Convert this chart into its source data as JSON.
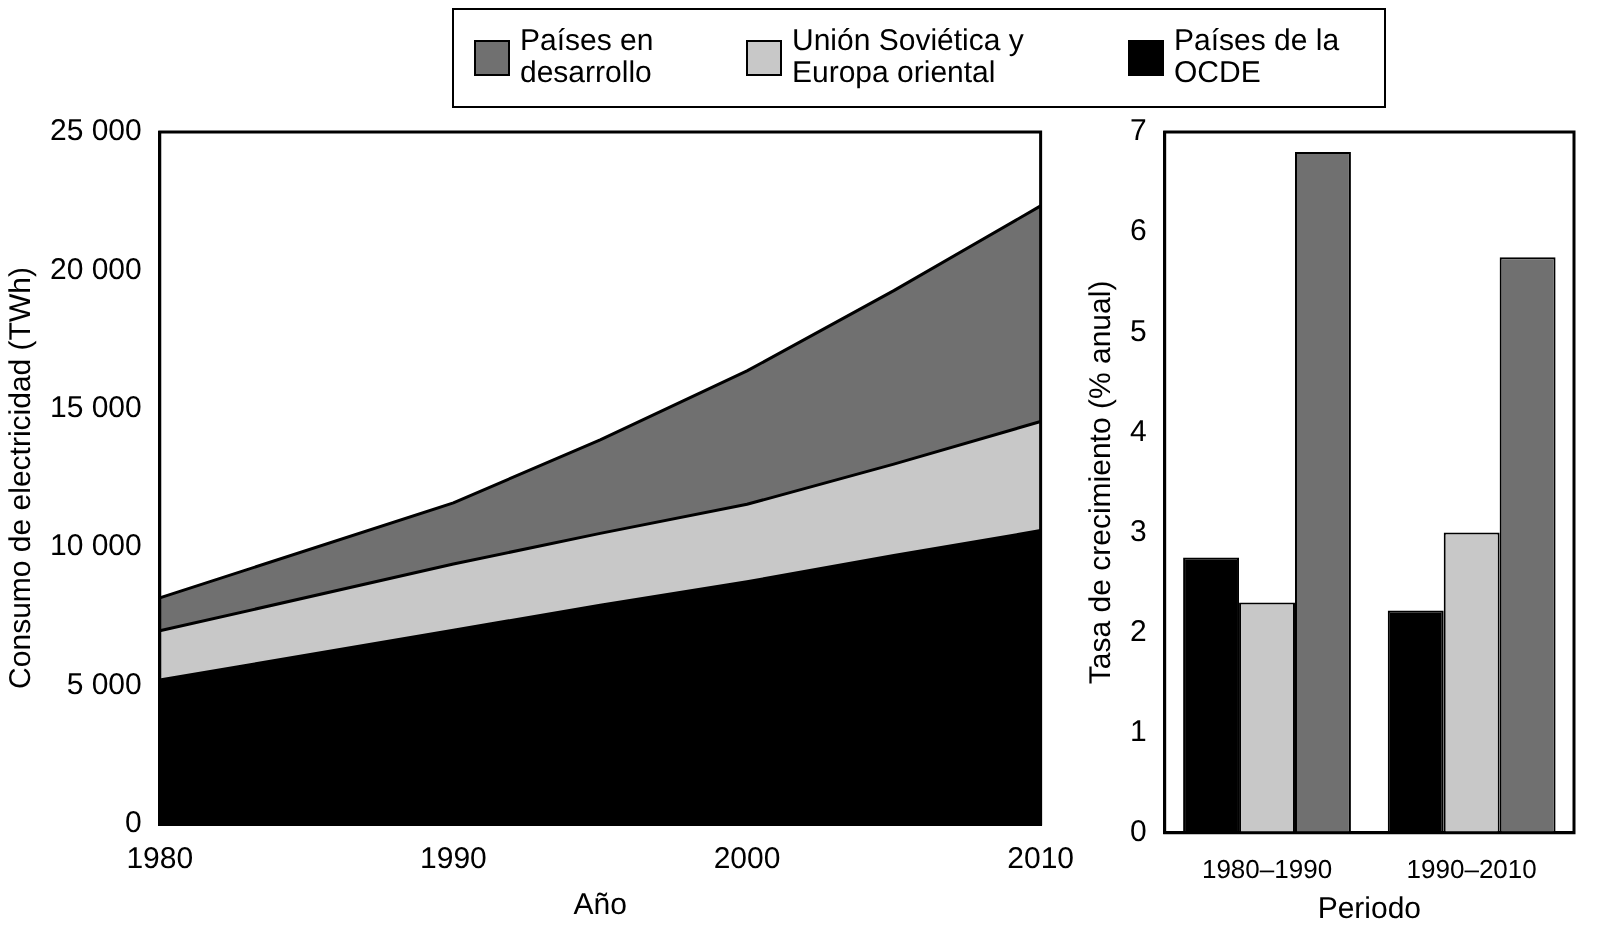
{
  "chart_data": [
    {
      "type": "area",
      "xlabel": "Año",
      "ylabel": "Consumo de electricidad (TWh)",
      "stacked": true,
      "legend": "top",
      "grid": false,
      "marker": "none",
      "x": [
        1980,
        1990,
        1995,
        2000,
        2005,
        2010
      ],
      "xlim": [
        1980,
        2010
      ],
      "xticks": [
        1980,
        1990,
        2000,
        2010
      ],
      "ylim": [
        0,
        25000
      ],
      "yticks": [
        0,
        {
          "value": 5000,
          "label": "5 000"
        },
        {
          "value": 10000,
          "label": "10 000"
        },
        {
          "value": 15000,
          "label": "15 000"
        },
        {
          "value": 20000,
          "label": "20 000"
        },
        {
          "value": 25000,
          "label": "25 000"
        }
      ],
      "series": [
        {
          "name": "Países de la OCDE",
          "color": "#000000",
          "values": [
            5200,
            7000,
            7900,
            8750,
            9700,
            10600
          ]
        },
        {
          "name": "Unión Soviética y Europa oriental",
          "color": "#c8c8c8",
          "values": [
            1780,
            2390,
            2600,
            2800,
            3300,
            3940
          ]
        },
        {
          "name": "Países en desarrollo",
          "color": "#707070",
          "values": [
            1190,
            2210,
            3380,
            4820,
            6270,
            7790
          ]
        }
      ]
    },
    {
      "type": "bar",
      "xlabel": "Periodo",
      "ylabel": "Tasa de crecimiento (% anual)",
      "grid": false,
      "categories": [
        "1980–1990",
        "1990–2010"
      ],
      "ylim": [
        0,
        7
      ],
      "yticks": [
        0,
        1,
        2,
        3,
        4,
        5,
        6,
        7
      ],
      "series": [
        {
          "color": "#000000",
          "values": [
            2.75,
            2.22
          ]
        },
        {
          "color": "#c8c8c8",
          "values": [
            2.3,
            3.0
          ]
        },
        {
          "color": "#707070",
          "values": [
            6.8,
            5.75
          ]
        }
      ]
    }
  ]
}
